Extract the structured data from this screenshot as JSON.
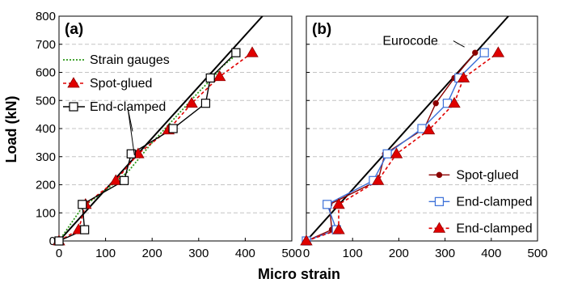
{
  "figure": {
    "xlabel": "Micro strain",
    "ylabel": "Load (kN)"
  },
  "chart_data": [
    {
      "panel": "(a)",
      "type": "line",
      "xlim": [
        0,
        500
      ],
      "ylim": [
        0,
        800
      ],
      "xticks": [
        0,
        100,
        200,
        300,
        400,
        500
      ],
      "yticks": [
        0,
        100,
        200,
        300,
        400,
        500,
        600,
        700,
        800
      ],
      "grid": "horizontal dashed",
      "legend_position": "top-left",
      "series": [
        {
          "name": "",
          "style": "black solid reference line",
          "color": "#000000",
          "x": [
            0,
            437
          ],
          "y": [
            0,
            800
          ]
        },
        {
          "name": "Strain gauges",
          "style": "green dotted",
          "color": "#2e9a1a",
          "x": [
            0,
            50,
            100,
            150,
            200,
            250,
            300,
            330,
            350,
            390
          ],
          "y": [
            0,
            120,
            180,
            250,
            350,
            440,
            530,
            580,
            620,
            675
          ]
        },
        {
          "name": "Spot-glued",
          "style": "red dashed, red triangles",
          "color": "#e00000",
          "x": [
            0,
            42,
            57,
            122,
            170,
            235,
            285,
            345,
            415
          ],
          "y": [
            0,
            40,
            130,
            215,
            310,
            395,
            490,
            585,
            670
          ]
        },
        {
          "name": "End-clamped",
          "style": "black solid, white squares",
          "color": "#000000",
          "x": [
            0,
            55,
            50,
            140,
            155,
            245,
            315,
            325,
            380
          ],
          "y": [
            0,
            40,
            130,
            215,
            310,
            400,
            490,
            580,
            670
          ]
        }
      ]
    },
    {
      "panel": "(b)",
      "type": "line",
      "xlim": [
        0,
        500
      ],
      "ylim": [
        0,
        800
      ],
      "xticks": [
        0,
        100,
        200,
        300,
        400,
        500
      ],
      "yticks": [
        0,
        100,
        200,
        300,
        400,
        500,
        600,
        700,
        800
      ],
      "grid": "horizontal dashed",
      "legend_position": "bottom-right",
      "annotation": "Eurocode",
      "series": [
        {
          "name": "Eurocode",
          "style": "black solid reference line",
          "color": "#000000",
          "x": [
            0,
            437
          ],
          "y": [
            0,
            800
          ]
        },
        {
          "name": "Spot-glued",
          "style": "dark red solid, dark red circles",
          "color": "#8b0000",
          "x": [
            0,
            55,
            50,
            155,
            170,
            255,
            280,
            320,
            365
          ],
          "y": [
            0,
            40,
            130,
            215,
            310,
            400,
            490,
            580,
            670
          ]
        },
        {
          "name": "End-clamped",
          "style": "blue solid, white squares",
          "color": "#3a6fd8",
          "x": [
            0,
            65,
            45,
            145,
            175,
            250,
            305,
            330,
            385
          ],
          "y": [
            0,
            40,
            130,
            215,
            310,
            400,
            490,
            580,
            670
          ]
        },
        {
          "name": "End-clamped",
          "style": "red dashed, red triangles",
          "color": "#e00000",
          "x": [
            0,
            70,
            70,
            155,
            195,
            265,
            320,
            340,
            415
          ],
          "y": [
            0,
            40,
            130,
            215,
            310,
            395,
            490,
            580,
            670
          ]
        }
      ]
    }
  ]
}
